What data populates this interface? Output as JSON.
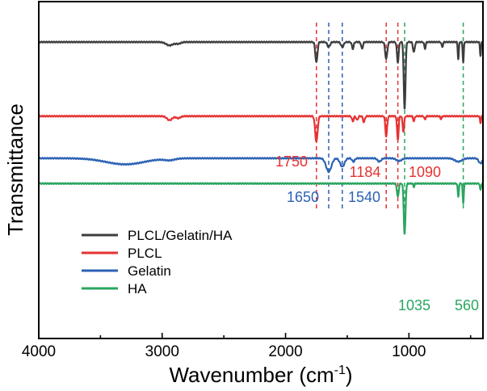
{
  "chart_data": {
    "type": "line",
    "title": "",
    "xlabel": "Wavenumber (cm",
    "xlabel_sup": "-1",
    "xlabel_end": ")",
    "ylabel": "Transmittance",
    "xlim": [
      4000,
      400
    ],
    "x_reversed": true,
    "ylim": [
      0,
      1
    ],
    "grid": false,
    "legend_position": "lower-left",
    "xticks": [
      4000,
      3000,
      2000,
      1000
    ],
    "xtick_labels": [
      "4000",
      "3000",
      "2000",
      "1000"
    ],
    "series": [
      {
        "name": "PLCL/Gelatin/HA",
        "color": "#3d3d3d",
        "baseline": 0.88,
        "features": [
          [
            2940,
            0.01,
            40
          ],
          [
            2870,
            0.005,
            30
          ],
          [
            1750,
            0.06,
            12
          ],
          [
            1650,
            0.015,
            15
          ],
          [
            1540,
            0.015,
            15
          ],
          [
            1455,
            0.02,
            10
          ],
          [
            1380,
            0.02,
            10
          ],
          [
            1184,
            0.05,
            12
          ],
          [
            1090,
            0.06,
            10
          ],
          [
            1035,
            0.2,
            10
          ],
          [
            960,
            0.03,
            10
          ],
          [
            870,
            0.02,
            8
          ],
          [
            730,
            0.015,
            8
          ],
          [
            600,
            0.05,
            6
          ],
          [
            560,
            0.06,
            6
          ],
          [
            420,
            0.04,
            6
          ]
        ]
      },
      {
        "name": "PLCL",
        "color": "#e53232",
        "baseline": 0.66,
        "features": [
          [
            2940,
            0.012,
            30
          ],
          [
            2870,
            0.006,
            25
          ],
          [
            1750,
            0.075,
            14
          ],
          [
            1455,
            0.015,
            10
          ],
          [
            1420,
            0.012,
            10
          ],
          [
            1365,
            0.018,
            10
          ],
          [
            1184,
            0.06,
            10
          ],
          [
            1090,
            0.07,
            9
          ],
          [
            1045,
            0.045,
            9
          ],
          [
            960,
            0.015,
            8
          ],
          [
            870,
            0.01,
            8
          ],
          [
            740,
            0.008,
            8
          ],
          [
            420,
            0.02,
            6
          ]
        ]
      },
      {
        "name": "Gelatin",
        "color": "#2c62b4",
        "baseline": 0.535,
        "features": [
          [
            3300,
            0.018,
            220
          ],
          [
            2940,
            0.005,
            60
          ],
          [
            1650,
            0.04,
            30
          ],
          [
            1540,
            0.025,
            25
          ],
          [
            1450,
            0.01,
            15
          ],
          [
            1240,
            0.01,
            20
          ],
          [
            1080,
            0.008,
            30
          ],
          [
            600,
            0.01,
            40
          ],
          [
            420,
            0.015,
            20
          ]
        ]
      },
      {
        "name": "HA",
        "color": "#2aa55f",
        "baseline": 0.46,
        "features": [
          [
            1090,
            0.04,
            10
          ],
          [
            1035,
            0.15,
            10
          ],
          [
            960,
            0.01,
            6
          ],
          [
            600,
            0.04,
            6
          ],
          [
            560,
            0.06,
            6
          ],
          [
            420,
            0.02,
            6
          ]
        ]
      }
    ],
    "markers": [
      {
        "x": 1750,
        "color": "#e53232",
        "label": "1750"
      },
      {
        "x": 1184,
        "color": "#e53232",
        "label": "1184"
      },
      {
        "x": 1090,
        "color": "#e53232",
        "label": "1090"
      },
      {
        "x": 1650,
        "color": "#2c62b4",
        "label": "1650"
      },
      {
        "x": 1540,
        "color": "#2c62b4",
        "label": "1540"
      },
      {
        "x": 1035,
        "color": "#2aa55f",
        "label": "1035"
      },
      {
        "x": 560,
        "color": "#2aa55f",
        "label": "560"
      }
    ]
  }
}
